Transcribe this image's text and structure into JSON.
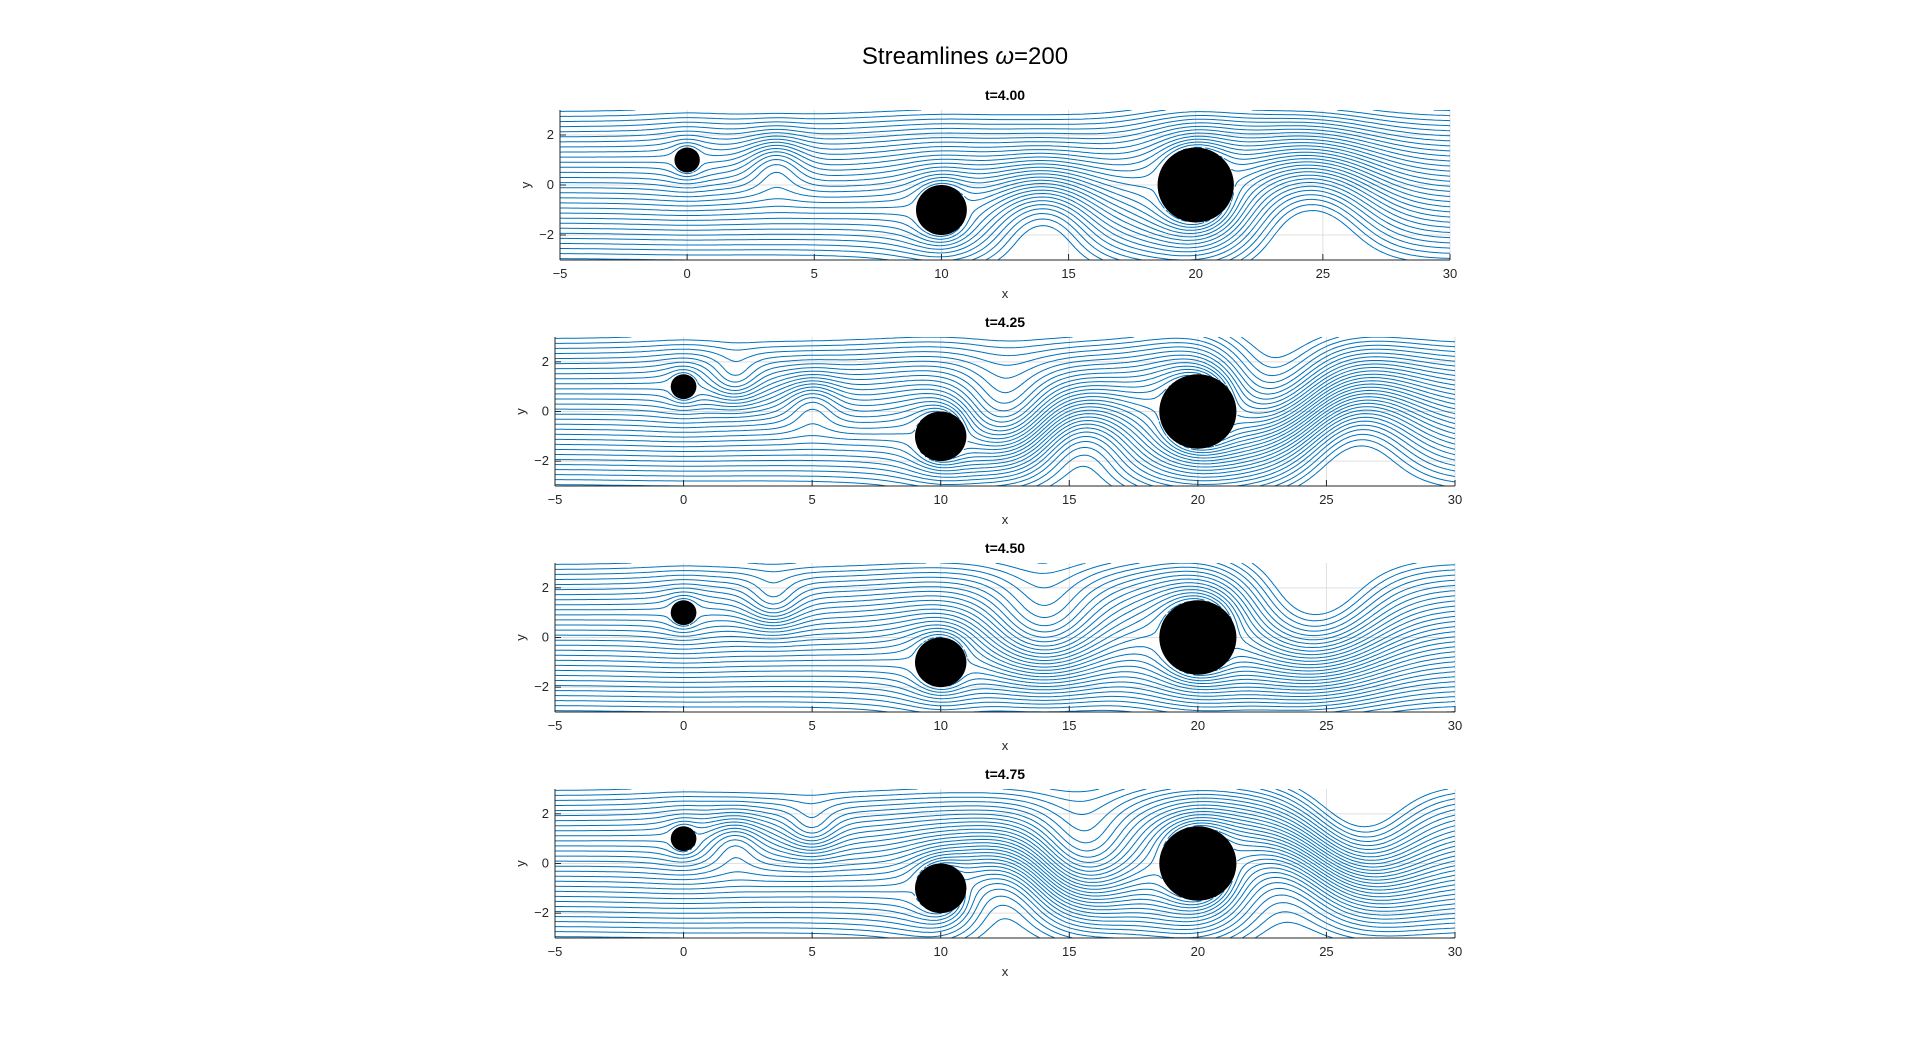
{
  "figure": {
    "title_prefix": "Streamlines ",
    "title_symbol": "ω",
    "title_suffix": "=200"
  },
  "colors": {
    "streamline": "#0072BD",
    "obstacle": "#000000",
    "grid": "#dfdfdf",
    "axis": "#262626"
  },
  "chart_data": [
    {
      "type": "streamline",
      "title": "t=4.00",
      "xlabel": "x",
      "ylabel": "y",
      "xlim": [
        -5,
        30
      ],
      "ylim": [
        -3,
        3
      ],
      "xticks": [
        -5,
        0,
        5,
        10,
        15,
        20,
        25,
        30
      ],
      "yticks": [
        -2,
        0,
        2
      ],
      "grid": true,
      "obstacles": [
        {
          "x": 0,
          "y": 1,
          "r": 0.5
        },
        {
          "x": 10,
          "y": -1,
          "r": 1
        },
        {
          "x": 20,
          "y": 0,
          "r": 1.5
        }
      ],
      "vortices": [
        {
          "x": 3.5,
          "y": 0.9,
          "r": 0.8,
          "dir": -1
        },
        {
          "x": 14,
          "y": -1.3,
          "r": 1.5,
          "dir": -1
        },
        {
          "x": 24.5,
          "y": -0.8,
          "r": 2.0,
          "dir": -1
        }
      ]
    },
    {
      "type": "streamline",
      "title": "t=4.25",
      "xlabel": "x",
      "ylabel": "y",
      "xlim": [
        -5,
        30
      ],
      "ylim": [
        -3,
        3
      ],
      "xticks": [
        -5,
        0,
        5,
        10,
        15,
        20,
        25,
        30
      ],
      "yticks": [
        -2,
        0,
        2
      ],
      "grid": true,
      "obstacles": [
        {
          "x": 0,
          "y": 1,
          "r": 0.5
        },
        {
          "x": 10,
          "y": -1,
          "r": 1
        },
        {
          "x": 20,
          "y": 0,
          "r": 1.5
        }
      ],
      "vortices": [
        {
          "x": 2,
          "y": 1.2,
          "r": 0.7,
          "dir": 1
        },
        {
          "x": 5,
          "y": 0.4,
          "r": 0.75,
          "dir": -1
        },
        {
          "x": 12.5,
          "y": -0.2,
          "r": 1.4,
          "dir": 1
        },
        {
          "x": 15.5,
          "y": -1.2,
          "r": 1.4,
          "dir": -1
        },
        {
          "x": 23,
          "y": 0.8,
          "r": 1.8,
          "dir": 1
        },
        {
          "x": 26,
          "y": -0.8,
          "r": 1.9,
          "dir": -1
        }
      ]
    },
    {
      "type": "streamline",
      "title": "t=4.50",
      "xlabel": "x",
      "ylabel": "y",
      "xlim": [
        -5,
        30
      ],
      "ylim": [
        -3,
        3
      ],
      "xticks": [
        -5,
        0,
        5,
        10,
        15,
        20,
        25,
        30
      ],
      "yticks": [
        -2,
        0,
        2
      ],
      "grid": true,
      "obstacles": [
        {
          "x": 0,
          "y": 1,
          "r": 0.5
        },
        {
          "x": 10,
          "y": -1,
          "r": 1
        },
        {
          "x": 20,
          "y": 0,
          "r": 1.5
        }
      ],
      "vortices": [
        {
          "x": 3.5,
          "y": 1.3,
          "r": 0.75,
          "dir": 1
        },
        {
          "x": 14,
          "y": 0.2,
          "r": 1.6,
          "dir": 1
        },
        {
          "x": 24.5,
          "y": 0.6,
          "r": 2.1,
          "dir": 1
        }
      ]
    },
    {
      "type": "streamline",
      "title": "t=4.75",
      "xlabel": "x",
      "ylabel": "y",
      "xlim": [
        -5,
        30
      ],
      "ylim": [
        -3,
        3
      ],
      "xticks": [
        -5,
        0,
        5,
        10,
        15,
        20,
        25,
        30
      ],
      "yticks": [
        -2,
        0,
        2
      ],
      "grid": true,
      "obstacles": [
        {
          "x": 0,
          "y": 1,
          "r": 0.5
        },
        {
          "x": 10,
          "y": -1,
          "r": 1
        },
        {
          "x": 20,
          "y": 0,
          "r": 1.5
        }
      ],
      "vortices": [
        {
          "x": 2,
          "y": 0.9,
          "r": 0.75,
          "dir": -1
        },
        {
          "x": 5,
          "y": 1.3,
          "r": 0.7,
          "dir": 1
        },
        {
          "x": 12.5,
          "y": -1.0,
          "r": 1.5,
          "dir": -1
        },
        {
          "x": 15.5,
          "y": 0.2,
          "r": 1.5,
          "dir": 1
        },
        {
          "x": 23.5,
          "y": -0.6,
          "r": 1.8,
          "dir": -1
        },
        {
          "x": 26,
          "y": 1.0,
          "r": 1.9,
          "dir": 1
        }
      ]
    }
  ]
}
